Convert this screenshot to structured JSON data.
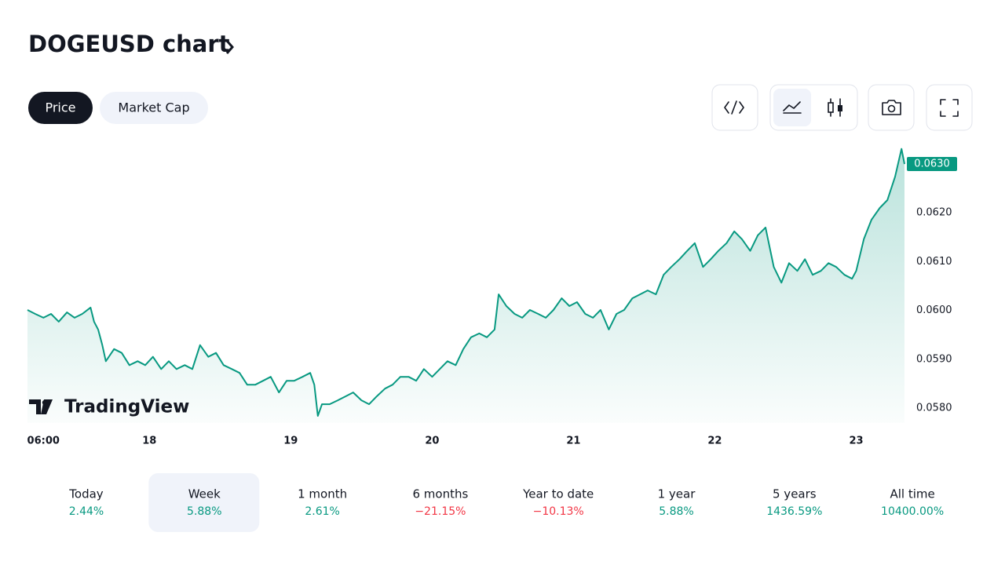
{
  "header": {
    "title": "DOGEUSD chart"
  },
  "tabs": [
    "Price",
    "Market Cap"
  ],
  "active_tab": 0,
  "logo": "TradingView",
  "chart_data": {
    "type": "area",
    "color": "#089981",
    "x": [
      3.3,
      4.6,
      6.0,
      7.3,
      8.6,
      10.0,
      11.3,
      12.6,
      14.0,
      14.6,
      15.3,
      16.0,
      16.6,
      18.0,
      19.3,
      20.6,
      22.0,
      23.3,
      24.6,
      26.0,
      27.3,
      28.6,
      30.0,
      31.3,
      32.6,
      34.0,
      35.3,
      36.6,
      38.0,
      39.3,
      40.6,
      42.0,
      43.3,
      44.6,
      46.0,
      47.3,
      48.6,
      50.0,
      51.3,
      52.0,
      52.6,
      53.3,
      54.6,
      56.0,
      57.3,
      58.6,
      60.0,
      61.3,
      62.6,
      64.0,
      65.3,
      66.6,
      68.0,
      69.3,
      70.6,
      72.0,
      73.3,
      74.6,
      76.0,
      77.3,
      78.6,
      80.0,
      81.3,
      82.6,
      83.3,
      84.6,
      86.0,
      87.3,
      88.6,
      90.0,
      91.3,
      92.6,
      94.0,
      95.3,
      96.6,
      98.0,
      99.3,
      100.6,
      102.0,
      103.3,
      104.6,
      106.0,
      107.3,
      108.6,
      110.0,
      111.3,
      112.6,
      114.0,
      115.3,
      116.6,
      118.0,
      119.3,
      120.6,
      122.0,
      123.3,
      124.6,
      126.0,
      127.3,
      128.6,
      130.0,
      131.3,
      132.6,
      134.0,
      135.3,
      136.6,
      138.0,
      139.3,
      140.6,
      142.0,
      143.3,
      144.0,
      145.3,
      146.6,
      148.0,
      149.3,
      150.6,
      151.7,
      152.2
    ],
    "values": [
      0.06001,
      0.05993,
      0.05985,
      0.05993,
      0.05977,
      0.05996,
      0.05985,
      0.05993,
      0.06006,
      0.05977,
      0.05961,
      0.05929,
      0.05896,
      0.05921,
      0.05913,
      0.05888,
      0.05896,
      0.05888,
      0.05905,
      0.0588,
      0.05896,
      0.0588,
      0.05888,
      0.0588,
      0.05929,
      0.05905,
      0.05913,
      0.05888,
      0.0588,
      0.05872,
      0.05848,
      0.05848,
      0.05856,
      0.05864,
      0.05832,
      0.05856,
      0.05856,
      0.05864,
      0.05872,
      0.05848,
      0.05784,
      0.05808,
      0.05808,
      0.05816,
      0.05824,
      0.05832,
      0.05816,
      0.05808,
      0.05824,
      0.0584,
      0.05848,
      0.05864,
      0.05864,
      0.05856,
      0.0588,
      0.05864,
      0.0588,
      0.05896,
      0.05888,
      0.05921,
      0.05945,
      0.05953,
      0.05945,
      0.05961,
      0.06033,
      0.06009,
      0.05993,
      0.05985,
      0.06001,
      0.05993,
      0.05985,
      0.06001,
      0.06025,
      0.06009,
      0.06017,
      0.05993,
      0.05985,
      0.06001,
      0.05961,
      0.05993,
      0.06001,
      0.06025,
      0.06033,
      0.06041,
      0.06033,
      0.06073,
      0.06089,
      0.06105,
      0.06122,
      0.06138,
      0.06089,
      0.06105,
      0.06122,
      0.06138,
      0.06162,
      0.06146,
      0.06122,
      0.06154,
      0.0617,
      0.06089,
      0.06057,
      0.06097,
      0.06081,
      0.06105,
      0.06073,
      0.06081,
      0.06097,
      0.06089,
      0.06073,
      0.06065,
      0.06081,
      0.06146,
      0.06186,
      0.0621,
      0.06226,
      0.06274,
      0.06331,
      0.063
    ],
    "xlim": [
      3.3,
      152.2
    ],
    "ylim": [
      0.0577,
      0.0634
    ],
    "xticks": [
      {
        "value": 6,
        "label": "06:00"
      },
      {
        "value": 24,
        "label": "18"
      },
      {
        "value": 48,
        "label": "19"
      },
      {
        "value": 72,
        "label": "20"
      },
      {
        "value": 96,
        "label": "21"
      },
      {
        "value": 120,
        "label": "22"
      },
      {
        "value": 144,
        "label": "23"
      }
    ],
    "yticks": [
      {
        "value": 0.058,
        "label": "0.0580"
      },
      {
        "value": 0.059,
        "label": "0.0590"
      },
      {
        "value": 0.06,
        "label": "0.0600"
      },
      {
        "value": 0.061,
        "label": "0.0610"
      },
      {
        "value": 0.062,
        "label": "0.0620"
      },
      {
        "value": 0.063,
        "label": "0.0630"
      }
    ],
    "current_price": {
      "value": 0.063,
      "label": "0.0630"
    }
  },
  "active_period": 1,
  "periods": [
    {
      "label": "Today",
      "change": "2.44%",
      "color": "#089981"
    },
    {
      "label": "Week",
      "change": "5.88%",
      "color": "#089981"
    },
    {
      "label": "1 month",
      "change": "2.61%",
      "color": "#089981"
    },
    {
      "label": "6 months",
      "change": "−21.15%",
      "color": "#f23645"
    },
    {
      "label": "Year to date",
      "change": "−10.13%",
      "color": "#f23645"
    },
    {
      "label": "1 year",
      "change": "5.88%",
      "color": "#089981"
    },
    {
      "label": "5 years",
      "change": "1436.59%",
      "color": "#089981"
    },
    {
      "label": "All time",
      "change": "10400.00%",
      "color": "#089981"
    }
  ]
}
